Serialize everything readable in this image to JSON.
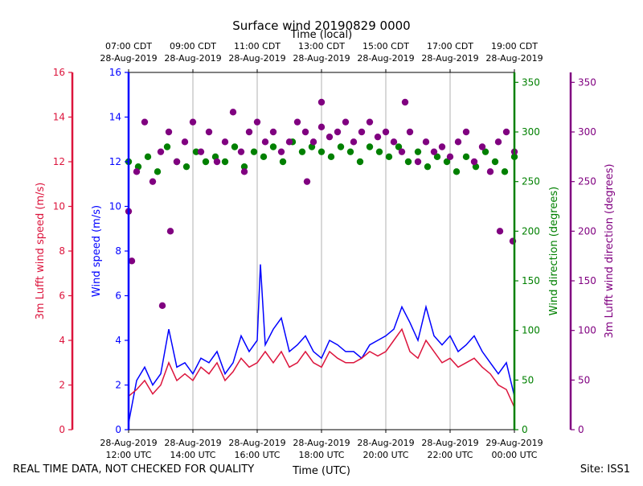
{
  "chart_data": {
    "type": "line+scatter",
    "title": "Surface wind 20190829 0000",
    "top_axis_label": "Time (local)",
    "xlabel": "Time (UTC)",
    "xlim_hours_utc": [
      12,
      24
    ],
    "grid": "vertical",
    "bottom_ticks": [
      {
        "hour": 12,
        "date": "28-Aug-2019",
        "time": "12:00 UTC"
      },
      {
        "hour": 14,
        "date": "28-Aug-2019",
        "time": "14:00 UTC"
      },
      {
        "hour": 16,
        "date": "28-Aug-2019",
        "time": "16:00 UTC"
      },
      {
        "hour": 18,
        "date": "28-Aug-2019",
        "time": "18:00 UTC"
      },
      {
        "hour": 20,
        "date": "28-Aug-2019",
        "time": "20:00 UTC"
      },
      {
        "hour": 22,
        "date": "28-Aug-2019",
        "time": "22:00 UTC"
      },
      {
        "hour": 24,
        "date": "29-Aug-2019",
        "time": "00:00 UTC"
      }
    ],
    "top_ticks": [
      {
        "hour": 12,
        "time": "07:00 CDT",
        "date": "28-Aug-2019"
      },
      {
        "hour": 14,
        "time": "09:00 CDT",
        "date": "28-Aug-2019"
      },
      {
        "hour": 16,
        "time": "11:00 CDT",
        "date": "28-Aug-2019"
      },
      {
        "hour": 18,
        "time": "13:00 CDT",
        "date": "28-Aug-2019"
      },
      {
        "hour": 20,
        "time": "15:00 CDT",
        "date": "28-Aug-2019"
      },
      {
        "hour": 22,
        "time": "17:00 CDT",
        "date": "28-Aug-2019"
      },
      {
        "hour": 24,
        "time": "19:00 CDT",
        "date": "28-Aug-2019"
      }
    ],
    "axes": {
      "speed_left": {
        "label": "Wind speed (m/s)",
        "color": "#0000ff",
        "ylim": [
          0,
          16
        ],
        "ticks": [
          "0",
          "2",
          "4",
          "6",
          "8",
          "10",
          "12",
          "14",
          "16"
        ]
      },
      "lufft_speed_left": {
        "label": "3m Lufft wind speed (m/s)",
        "color": "#dc143c",
        "ylim": [
          0,
          16
        ],
        "ticks": [
          "0",
          "2",
          "4",
          "6",
          "8",
          "10",
          "12",
          "14",
          "16"
        ]
      },
      "dir_right": {
        "label": "Wind direction (degrees)",
        "color": "#008000",
        "ylim": [
          0,
          360
        ],
        "ticks": [
          "0",
          "50",
          "100",
          "150",
          "200",
          "250",
          "300",
          "350"
        ]
      },
      "lufft_dir_right": {
        "label": "3m Lufft wind direction (degrees)",
        "color": "#800080",
        "ylim": [
          0,
          360
        ],
        "ticks": [
          "0",
          "50",
          "100",
          "150",
          "200",
          "250",
          "300",
          "350"
        ]
      }
    },
    "series": [
      {
        "name": "Wind speed",
        "kind": "line",
        "color": "#0000ff",
        "axis": "speed_left",
        "x": [
          12.0,
          12.25,
          12.5,
          12.75,
          13.0,
          13.25,
          13.5,
          13.75,
          14.0,
          14.25,
          14.5,
          14.75,
          15.0,
          15.25,
          15.5,
          15.75,
          16.0,
          16.1,
          16.25,
          16.5,
          16.75,
          17.0,
          17.25,
          17.5,
          17.75,
          18.0,
          18.25,
          18.5,
          18.75,
          19.0,
          19.25,
          19.5,
          19.75,
          20.0,
          20.25,
          20.5,
          20.75,
          21.0,
          21.25,
          21.5,
          21.75,
          22.0,
          22.25,
          22.5,
          22.75,
          23.0,
          23.25,
          23.5,
          23.75,
          24.0
        ],
        "y": [
          0.3,
          2.2,
          2.8,
          2.0,
          2.5,
          4.5,
          2.8,
          3.0,
          2.5,
          3.2,
          3.0,
          3.5,
          2.5,
          3.0,
          4.2,
          3.5,
          4.0,
          7.4,
          3.8,
          4.5,
          5.0,
          3.5,
          3.8,
          4.2,
          3.5,
          3.2,
          4.0,
          3.8,
          3.5,
          3.5,
          3.2,
          3.8,
          4.0,
          4.2,
          4.5,
          5.5,
          4.8,
          4.0,
          5.5,
          4.2,
          3.8,
          4.2,
          3.5,
          3.8,
          4.2,
          3.5,
          3.0,
          2.5,
          3.0,
          1.5
        ]
      },
      {
        "name": "3m Lufft wind speed",
        "kind": "line",
        "color": "#dc143c",
        "axis": "lufft_speed_left",
        "x": [
          12.0,
          12.25,
          12.5,
          12.75,
          13.0,
          13.25,
          13.5,
          13.75,
          14.0,
          14.25,
          14.5,
          14.75,
          15.0,
          15.25,
          15.5,
          15.75,
          16.0,
          16.25,
          16.5,
          16.75,
          17.0,
          17.25,
          17.5,
          17.75,
          18.0,
          18.25,
          18.5,
          18.75,
          19.0,
          19.25,
          19.5,
          19.75,
          20.0,
          20.25,
          20.5,
          20.75,
          21.0,
          21.25,
          21.5,
          21.75,
          22.0,
          22.25,
          22.5,
          22.75,
          23.0,
          23.25,
          23.5,
          23.75,
          24.0
        ],
        "y": [
          1.5,
          1.8,
          2.2,
          1.6,
          2.0,
          3.0,
          2.2,
          2.5,
          2.2,
          2.8,
          2.5,
          3.0,
          2.2,
          2.6,
          3.2,
          2.8,
          3.0,
          3.5,
          3.0,
          3.5,
          2.8,
          3.0,
          3.5,
          3.0,
          2.8,
          3.5,
          3.2,
          3.0,
          3.0,
          3.2,
          3.5,
          3.3,
          3.5,
          4.0,
          4.5,
          3.5,
          3.2,
          4.0,
          3.5,
          3.0,
          3.2,
          2.8,
          3.0,
          3.2,
          2.8,
          2.5,
          2.0,
          1.8,
          1.0
        ]
      },
      {
        "name": "Wind direction",
        "kind": "scatter",
        "color": "#008000",
        "axis": "dir_right",
        "x": [
          12.0,
          12.3,
          12.6,
          12.9,
          13.2,
          13.5,
          13.8,
          14.1,
          14.4,
          14.7,
          15.0,
          15.3,
          15.6,
          15.9,
          16.2,
          16.5,
          16.8,
          17.1,
          17.4,
          17.7,
          18.0,
          18.3,
          18.6,
          18.9,
          19.2,
          19.5,
          19.8,
          20.1,
          20.4,
          20.7,
          21.0,
          21.3,
          21.6,
          21.9,
          22.2,
          22.5,
          22.8,
          23.1,
          23.4,
          23.7,
          24.0
        ],
        "y": [
          270,
          265,
          275,
          260,
          285,
          270,
          265,
          280,
          270,
          275,
          270,
          285,
          265,
          280,
          275,
          285,
          270,
          290,
          280,
          285,
          280,
          275,
          285,
          280,
          270,
          285,
          280,
          275,
          285,
          270,
          280,
          265,
          275,
          270,
          260,
          275,
          265,
          280,
          270,
          260,
          275
        ]
      },
      {
        "name": "3m Lufft wind direction",
        "kind": "scatter",
        "color": "#800080",
        "axis": "lufft_dir_right",
        "x": [
          12.0,
          12.25,
          12.5,
          12.75,
          13.0,
          13.25,
          13.5,
          13.75,
          14.0,
          14.25,
          14.5,
          14.75,
          15.0,
          15.25,
          15.5,
          15.75,
          16.0,
          16.25,
          16.5,
          16.75,
          17.0,
          17.25,
          17.5,
          17.75,
          18.0,
          18.25,
          18.5,
          18.75,
          19.0,
          19.25,
          19.5,
          19.75,
          20.0,
          20.25,
          20.5,
          20.75,
          21.0,
          21.25,
          21.5,
          21.75,
          22.0,
          22.25,
          22.5,
          22.75,
          23.0,
          23.25,
          23.5,
          23.75,
          24.0,
          12.1,
          13.05,
          13.3,
          15.6,
          17.55,
          18.0,
          20.6,
          23.55,
          23.95
        ],
        "y": [
          220,
          260,
          310,
          250,
          280,
          300,
          270,
          290,
          310,
          280,
          300,
          270,
          290,
          320,
          280,
          300,
          310,
          290,
          300,
          280,
          290,
          310,
          300,
          290,
          305,
          295,
          300,
          310,
          290,
          300,
          310,
          295,
          300,
          290,
          280,
          300,
          270,
          290,
          280,
          285,
          275,
          290,
          300,
          270,
          285,
          260,
          290,
          300,
          280,
          170,
          125,
          200,
          260,
          250,
          330,
          330,
          200,
          190
        ]
      }
    ]
  },
  "footer": {
    "left": "REAL TIME DATA, NOT CHECKED FOR QUALITY",
    "right": "Site: ISS1"
  }
}
